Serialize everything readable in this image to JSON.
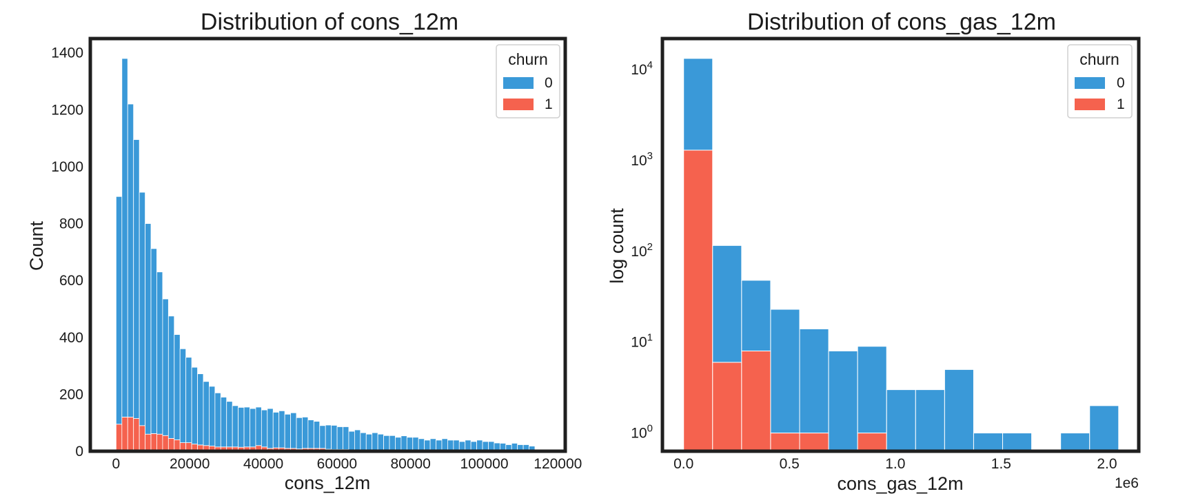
{
  "chart_data": [
    {
      "type": "bar",
      "subtype": "stacked-histogram",
      "title": "Distribution of cons_12m",
      "xlabel": "cons_12m",
      "ylabel": "Count",
      "xlim": [
        -7000,
        122000
      ],
      "ylim": [
        0,
        1450
      ],
      "xticks": [
        0,
        20000,
        40000,
        60000,
        80000,
        100000,
        120000
      ],
      "yticks": [
        0,
        200,
        400,
        600,
        800,
        1000,
        1200,
        1400
      ],
      "bin_start": 0,
      "bin_width": 1580,
      "grid": false,
      "legend": {
        "title": "churn",
        "position": "top-right"
      },
      "series": [
        {
          "name": "0",
          "color": "#3a99d8",
          "values": [
            800,
            1260,
            1100,
            980,
            820,
            740,
            650,
            570,
            480,
            430,
            370,
            330,
            300,
            270,
            250,
            225,
            210,
            190,
            175,
            160,
            145,
            140,
            140,
            135,
            135,
            130,
            140,
            125,
            130,
            120,
            125,
            110,
            110,
            100,
            95,
            80,
            85,
            85,
            80,
            80,
            65,
            70,
            60,
            55,
            60,
            55,
            50,
            50,
            45,
            50,
            45,
            45,
            40,
            35,
            40,
            35,
            40,
            35,
            35,
            30,
            35,
            30,
            35,
            30,
            30,
            25,
            25,
            20,
            25,
            20,
            20,
            15
          ]
        },
        {
          "name": "1",
          "color": "#f5624e",
          "values": [
            95,
            120,
            120,
            115,
            90,
            60,
            62,
            60,
            55,
            45,
            40,
            30,
            30,
            25,
            22,
            20,
            18,
            15,
            15,
            15,
            15,
            14,
            15,
            15,
            20,
            15,
            10,
            12,
            12,
            10,
            10,
            8,
            10,
            10,
            10,
            10,
            7,
            6,
            6,
            6,
            5,
            5,
            5,
            5,
            5,
            5,
            5,
            5,
            4,
            4,
            4,
            4,
            4,
            4,
            4,
            4,
            4,
            4,
            4,
            4,
            4,
            4,
            4,
            4,
            4,
            4,
            3,
            3,
            3,
            3,
            3,
            3
          ]
        }
      ]
    },
    {
      "type": "bar",
      "subtype": "stacked-histogram",
      "title": "Distribution of cons_gas_12m",
      "xlabel": "cons_gas_12m",
      "ylabel": "log count",
      "x_offset_label": "1e6",
      "xscale": "linear",
      "yscale": "log",
      "xlim": [
        -0.1,
        2.15
      ],
      "ylim": [
        0.63,
        22000
      ],
      "xticks": [
        0.0,
        0.5,
        1.0,
        1.5,
        2.0
      ],
      "xtick_labels": [
        "0.0",
        "0.5",
        "1.0",
        "1.5",
        "2.0"
      ],
      "yticks": [
        {
          "base": "10",
          "exp": "0"
        },
        {
          "base": "10",
          "exp": "1"
        },
        {
          "base": "10",
          "exp": "2"
        },
        {
          "base": "10",
          "exp": "3"
        },
        {
          "base": "10",
          "exp": "4"
        }
      ],
      "bins": [
        [
          0.0,
          0.137
        ],
        [
          0.137,
          0.274
        ],
        [
          0.274,
          0.411
        ],
        [
          0.411,
          0.548
        ],
        [
          0.548,
          0.685
        ],
        [
          0.685,
          0.822
        ],
        [
          0.822,
          0.959
        ],
        [
          0.959,
          1.096
        ],
        [
          1.096,
          1.233
        ],
        [
          1.233,
          1.37
        ],
        [
          1.37,
          1.507
        ],
        [
          1.507,
          1.644
        ],
        [
          1.644,
          1.781
        ],
        [
          1.781,
          1.918
        ],
        [
          1.918,
          2.055
        ]
      ],
      "grid": false,
      "legend": {
        "title": "churn",
        "position": "top-right"
      },
      "series": [
        {
          "name": "0",
          "color": "#3a99d8",
          "values": [
            12000,
            110,
            40,
            22,
            13,
            8,
            8,
            3,
            3,
            5,
            1,
            1,
            0,
            1,
            2
          ]
        },
        {
          "name": "1",
          "color": "#f5624e",
          "values": [
            1300,
            6,
            8,
            1,
            1,
            0,
            1,
            0,
            0,
            0,
            0,
            0,
            0,
            0,
            0
          ]
        }
      ]
    }
  ]
}
